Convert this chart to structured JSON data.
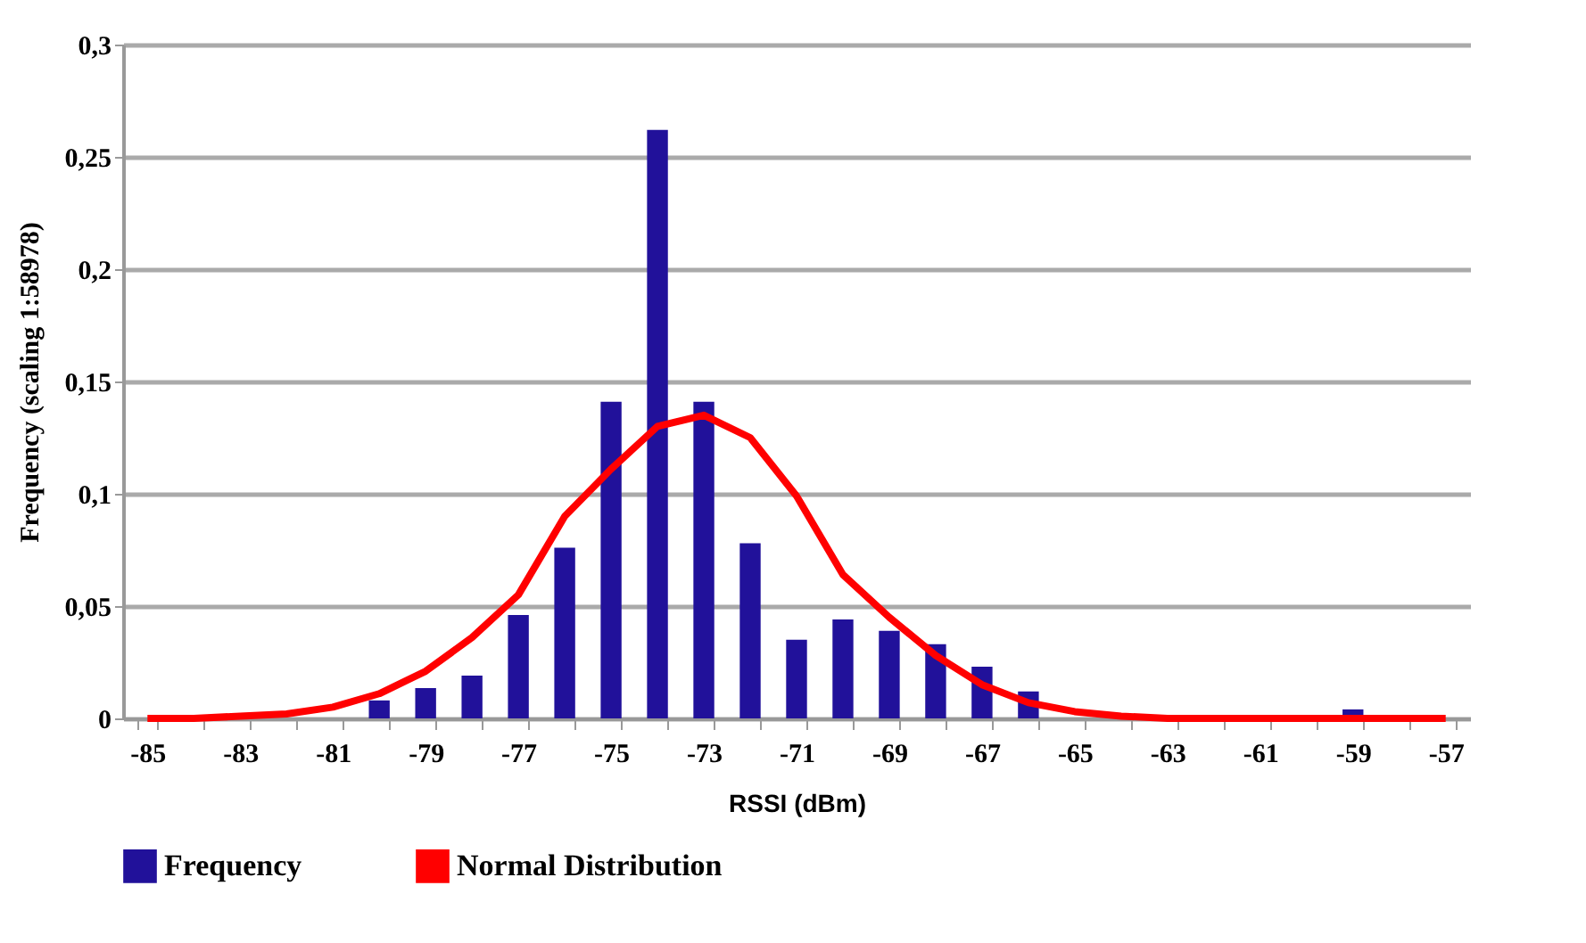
{
  "chart_data": {
    "type": "bar",
    "xlabel": "RSSI (dBm)",
    "ylabel": "Frequency (scaling 1:58978)",
    "categories": [
      "-85",
      null,
      "-83",
      null,
      "-81",
      null,
      "-79",
      null,
      "-77",
      null,
      "-75",
      null,
      "-73",
      null,
      "-71",
      null,
      "-69",
      null,
      "-67",
      null,
      "-65",
      null,
      "-63",
      null,
      "-61",
      null,
      "-59",
      null,
      "-57"
    ],
    "series": [
      {
        "name": "Frequency",
        "color": "#21119a",
        "values": [
          0,
          0,
          0,
          0,
          0,
          0.008,
          0.0135,
          0.019,
          0.046,
          0.076,
          0.141,
          0.262,
          0.141,
          0.078,
          0.035,
          0.044,
          0.039,
          0.033,
          0.023,
          0.012,
          0,
          0,
          0,
          0,
          0,
          0,
          0.004,
          0,
          0
        ]
      },
      {
        "name": "Normal Distribution",
        "type": "line",
        "color": "#ff0000",
        "values": [
          0,
          0,
          0.001,
          0.002,
          0.005,
          0.011,
          0.021,
          0.036,
          0.055,
          0.09,
          0.111,
          0.13,
          0.135,
          0.125,
          0.099,
          0.064,
          0.045,
          0.028,
          0.015,
          0.007,
          0.003,
          0.001,
          0,
          0,
          0,
          0,
          0,
          0,
          0
        ]
      }
    ],
    "ylim": [
      0,
      0.3
    ],
    "yticks": [
      {
        "value": 0,
        "label": "0"
      },
      {
        "value": 0.05,
        "label": "0,05"
      },
      {
        "value": 0.1,
        "label": "0,1"
      },
      {
        "value": 0.15,
        "label": "0,15"
      },
      {
        "value": 0.2,
        "label": "0,2"
      },
      {
        "value": 0.25,
        "label": "0,25"
      },
      {
        "value": 0.3,
        "label": "0,3"
      }
    ],
    "grid": "y",
    "legend": "bottom",
    "marker": "none"
  }
}
